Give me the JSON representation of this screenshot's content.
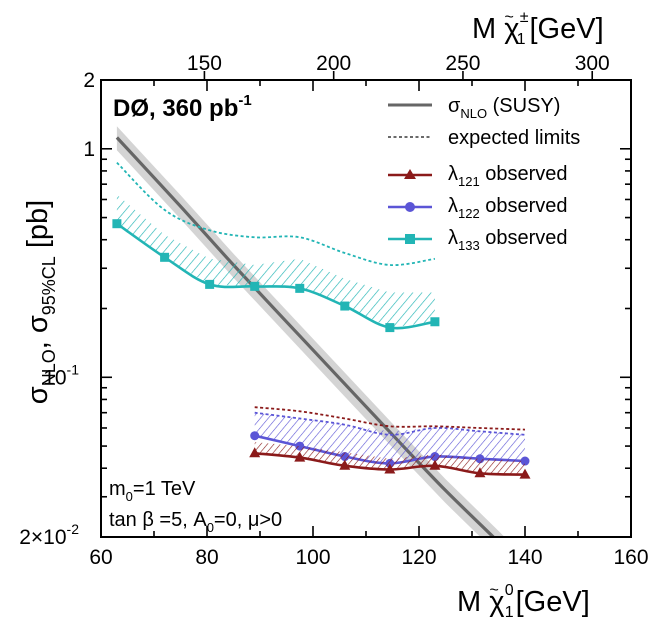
{
  "chart_data": {
    "type": "line",
    "title": "DØ, 360 pb",
    "title_sup": "-1",
    "xlabel": {
      "prefix": "M ",
      "symbol": "χ",
      "tilde": "~",
      "sup": "0",
      "sub": "1",
      "unit": "[GeV]"
    },
    "x2label": {
      "prefix": "M ",
      "symbol": "χ",
      "tilde": "~",
      "sup": "±",
      "sub": "1",
      "unit": "[GeV]"
    },
    "ylabel": {
      "p1": "σ",
      "s1": "NLO",
      "p2": ", σ",
      "s2": "95%CL",
      "p3": " [pb]"
    },
    "xlim": [
      60,
      160
    ],
    "ylim": [
      0.02,
      2
    ],
    "yscale": "log",
    "x2lim": [
      110,
      315
    ],
    "xticks": [
      "60",
      "80",
      "100",
      "120",
      "140",
      "160"
    ],
    "x2ticks": [
      "150",
      "200",
      "250",
      "300"
    ],
    "yticks": [
      {
        "value": 2,
        "label": "2",
        "pre": "",
        "sup": ""
      },
      {
        "value": 1,
        "label": "1",
        "pre": "",
        "sup": ""
      },
      {
        "value": 0.1,
        "label": "",
        "pre": "10",
        "sup": "-1"
      },
      {
        "value": 0.02,
        "label": "",
        "pre": "2×10",
        "sup": "-2"
      }
    ],
    "annotations": [
      {
        "id": "m0",
        "base": "m",
        "sub": "0",
        "rest": "=1 TeV"
      },
      {
        "id": "params",
        "text": "tan β =5,  A",
        "sub": "0",
        "rest": "=0,  μ>0"
      }
    ],
    "legend": {
      "position": "top-right",
      "entries": [
        {
          "id": "nlo",
          "symbol": "σ",
          "sub": "NLO",
          "rest": " (SUSY)",
          "color": "#666666",
          "style": "solid"
        },
        {
          "id": "exp",
          "symbol": "",
          "sub": "",
          "rest": "expected limits",
          "color": "#555555",
          "style": "dotted"
        },
        {
          "id": "l121",
          "symbol": "λ",
          "sub": "121",
          "rest": " observed",
          "color": "#8b1a1a",
          "marker": "triangle"
        },
        {
          "id": "l122",
          "symbol": "λ",
          "sub": "122",
          "rest": " observed",
          "color": "#5b55d6",
          "marker": "circle"
        },
        {
          "id": "l133",
          "symbol": "λ",
          "sub": "133",
          "rest": " observed",
          "color": "#22b5b5",
          "marker": "square"
        }
      ]
    },
    "theory": {
      "x": [
        63,
        75,
        85,
        95,
        105,
        115,
        125,
        135,
        140
      ],
      "y": [
        1.12,
        0.56,
        0.31,
        0.175,
        0.099,
        0.056,
        0.032,
        0.019,
        0.0145
      ],
      "band_rel": 0.12
    },
    "series": [
      {
        "id": "l133",
        "color": "#22b5b5",
        "marker": "square",
        "x": [
          63,
          72,
          80.5,
          89,
          97.5,
          106,
          114.5,
          123
        ],
        "y": [
          0.47,
          0.335,
          0.255,
          0.25,
          0.245,
          0.205,
          0.165,
          0.175
        ],
        "expected_x": [
          63,
          72,
          80.5,
          89,
          97.5,
          106,
          114.5,
          123
        ],
        "expected_y": [
          0.87,
          0.54,
          0.44,
          0.41,
          0.41,
          0.35,
          0.31,
          0.33
        ],
        "hatch_upper_y": [
          0.63,
          0.42,
          0.33,
          0.31,
          0.33,
          0.27,
          0.235,
          0.235
        ]
      },
      {
        "id": "l122",
        "color": "#5b55d6",
        "marker": "circle",
        "x": [
          89,
          97.5,
          106,
          114.5,
          123,
          131.5,
          140
        ],
        "y": [
          0.0555,
          0.05,
          0.045,
          0.042,
          0.045,
          0.044,
          0.043
        ],
        "expected_x": [
          89,
          97.5,
          106,
          114.5,
          123,
          131.5,
          140
        ],
        "expected_y": [
          0.07,
          0.066,
          0.062,
          0.056,
          0.06,
          0.058,
          0.056
        ],
        "hatch_upper_y": [
          0.07,
          0.066,
          0.062,
          0.058,
          0.06,
          0.058,
          0.056
        ]
      },
      {
        "id": "l121",
        "color": "#8b1a1a",
        "marker": "triangle",
        "x": [
          89,
          97.5,
          106,
          114.5,
          123,
          131.5,
          140
        ],
        "y": [
          0.0465,
          0.0445,
          0.041,
          0.0395,
          0.041,
          0.038,
          0.0375
        ],
        "expected_x": [
          89,
          97.5,
          106,
          114.5,
          123,
          131.5,
          140
        ],
        "expected_y": [
          0.074,
          0.071,
          0.066,
          0.061,
          0.061,
          0.06,
          0.059
        ],
        "hatch_upper_y": [
          0.052,
          0.05,
          0.047,
          0.044,
          0.046,
          0.044,
          0.043
        ]
      }
    ]
  }
}
